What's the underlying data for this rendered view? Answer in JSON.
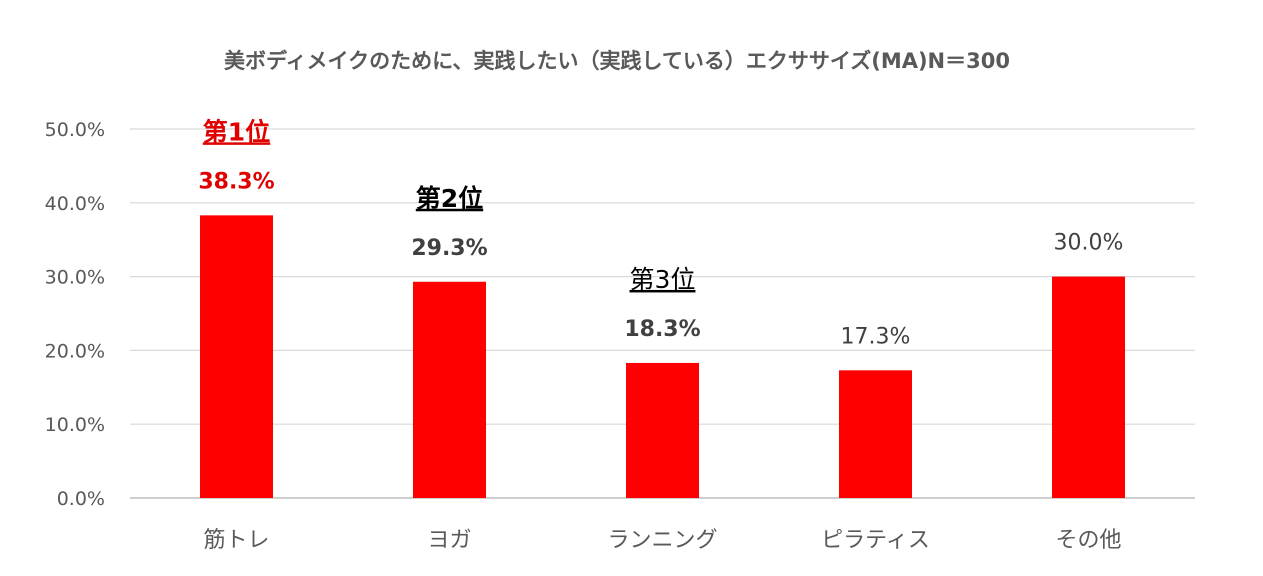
{
  "chart_data": {
    "type": "bar",
    "title": "美ボディメイクのために、実践したい（実践している）エクササイズ(MA)N＝300",
    "categories": [
      "筋トレ",
      "ヨガ",
      "ランニング",
      "ピラティス",
      "その他"
    ],
    "values": [
      38.3,
      29.3,
      18.3,
      17.3,
      30.0
    ],
    "value_labels": [
      "38.3%",
      "29.3%",
      "18.3%",
      "17.3%",
      "30.0%"
    ],
    "rank_labels": [
      "第1位",
      "第2位",
      "第3位",
      "",
      ""
    ],
    "ylim": [
      0,
      50
    ],
    "yticks": [
      0,
      10,
      20,
      30,
      40,
      50
    ],
    "ytick_labels": [
      "0.0%",
      "10.0%",
      "20.0%",
      "30.0%",
      "40.0%",
      "50.0%"
    ],
    "xlabel": "",
    "ylabel": "",
    "grid": true,
    "bar_color": "#ff0000",
    "highlight_color": "#e00000"
  }
}
